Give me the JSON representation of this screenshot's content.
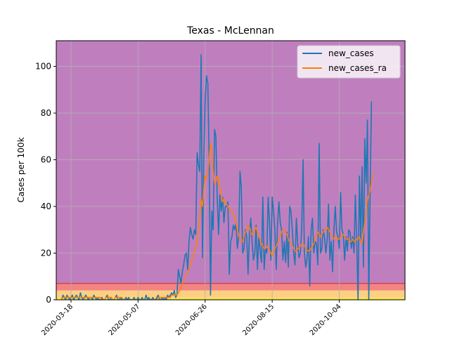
{
  "chart_data": {
    "type": "line",
    "title": "Texas - McLennan",
    "xlabel": "",
    "ylabel": "Cases per 100k",
    "x_start": "2020-03-11",
    "x_end": "2020-11-16",
    "xlim": [
      "2020-03-07",
      "2020-11-22"
    ],
    "ylim": [
      0,
      111
    ],
    "yticks": [
      0,
      20,
      40,
      60,
      80,
      100
    ],
    "xticks": [
      "2020-03-18",
      "2020-05-07",
      "2020-06-26",
      "2020-08-15",
      "2020-10-04"
    ],
    "grid": true,
    "legend_position": "upper right",
    "risk_bands": [
      {
        "from": 0,
        "to": 1,
        "color": "#f7e34b"
      },
      {
        "from": 1,
        "to": 4,
        "color": "#fccf82"
      },
      {
        "from": 4,
        "to": 7,
        "color": "#f38481"
      },
      {
        "from": 7,
        "to": 111,
        "color": "#bf7fbf"
      }
    ],
    "band_edge_color": "#d62728",
    "series": [
      {
        "name": "new_cases",
        "color": "#1f77b4",
        "values": [
          0,
          2,
          1,
          0,
          2,
          1,
          0,
          1,
          2,
          0,
          1,
          2,
          1,
          0,
          3,
          1,
          0,
          1,
          2,
          1,
          0,
          1,
          1,
          0,
          2,
          1,
          0,
          1,
          0,
          0,
          1,
          0,
          0,
          1,
          2,
          0,
          0,
          1,
          0,
          0,
          1,
          2,
          0,
          0,
          1,
          0,
          0,
          0,
          1,
          0,
          1,
          0,
          0,
          0,
          1,
          0,
          0,
          1,
          0,
          0,
          1,
          0,
          0,
          2,
          0,
          1,
          0,
          0,
          1,
          0,
          0,
          1,
          2,
          0,
          0,
          1,
          0,
          1,
          0,
          2,
          1,
          2,
          3,
          2,
          4,
          1,
          2,
          13,
          10,
          7,
          12,
          15,
          19,
          20,
          13,
          25,
          31,
          28,
          26,
          30,
          28,
          63,
          58,
          55,
          105,
          18,
          60,
          85,
          96,
          93,
          60,
          2,
          38,
          30,
          73,
          70,
          44,
          28,
          45,
          38,
          44,
          33,
          40,
          40,
          42,
          11,
          25,
          27,
          32,
          30,
          33,
          22,
          27,
          55,
          48,
          20,
          22,
          30,
          27,
          11,
          28,
          35,
          25,
          17,
          20,
          32,
          13,
          27,
          21,
          16,
          44,
          13,
          22,
          20,
          44,
          33,
          17,
          44,
          38,
          30,
          13,
          33,
          42,
          33,
          30,
          17,
          25,
          16,
          29,
          14,
          40,
          38,
          30,
          20,
          15,
          35,
          24,
          18,
          20,
          31,
          60,
          20,
          14,
          18,
          27,
          6,
          30,
          35,
          20,
          25,
          24,
          15,
          67,
          20,
          22,
          30,
          27,
          20,
          26,
          41,
          17,
          25,
          12,
          30,
          40,
          29,
          27,
          22,
          46,
          30,
          28,
          17,
          27,
          21,
          30,
          29,
          22,
          27,
          20,
          45,
          25,
          0,
          53,
          25,
          57,
          14,
          69,
          50,
          77,
          0,
          46,
          85
        ]
      },
      {
        "name": "new_cases_ra",
        "color": "#ff7f0e",
        "values": [
          0,
          1,
          1,
          1,
          1,
          1,
          1,
          1,
          1,
          1,
          1,
          1,
          1,
          1,
          1,
          1,
          1,
          1,
          1,
          1,
          1,
          1,
          1,
          1,
          1,
          1,
          1,
          1,
          1,
          1,
          0,
          0,
          0,
          1,
          1,
          1,
          1,
          1,
          0,
          0,
          1,
          1,
          1,
          1,
          1,
          1,
          0,
          0,
          0,
          0,
          0,
          0,
          0,
          0,
          0,
          0,
          0,
          0,
          0,
          0,
          0,
          0,
          0,
          0,
          0,
          0,
          0,
          0,
          0,
          0,
          0,
          0,
          1,
          1,
          1,
          1,
          1,
          1,
          1,
          1,
          1,
          1,
          2,
          2,
          2,
          2,
          2,
          3,
          4,
          5,
          7,
          8,
          10,
          11,
          12,
          13,
          15,
          17,
          19,
          20,
          22,
          25,
          30,
          35,
          43,
          40,
          47,
          53,
          52,
          55,
          60,
          67,
          63,
          55,
          50,
          50,
          53,
          52,
          48,
          45,
          42,
          43,
          41,
          41,
          40,
          39,
          38,
          38,
          37,
          35,
          33,
          30,
          28,
          26,
          25,
          25,
          27,
          29,
          30,
          32,
          31,
          29,
          28,
          28,
          30,
          31,
          29,
          27,
          26,
          24,
          23,
          22,
          22,
          23,
          22,
          21,
          20,
          19,
          20,
          22,
          23,
          24,
          26,
          27,
          29,
          30,
          30,
          29,
          28,
          26,
          25,
          24,
          23,
          22,
          21,
          21,
          22,
          22,
          23,
          24,
          24,
          23,
          22,
          21,
          21,
          21,
          22,
          23,
          24,
          26,
          28,
          29,
          28,
          27,
          28,
          29,
          30,
          30,
          31,
          30,
          29,
          28,
          27,
          26,
          27,
          27,
          26,
          26,
          27,
          28,
          28,
          27,
          26,
          26,
          26,
          25,
          25,
          26,
          25,
          25,
          26,
          26,
          27,
          25,
          24,
          29,
          33,
          38,
          43,
          45,
          47,
          50,
          54
        ]
      }
    ]
  }
}
